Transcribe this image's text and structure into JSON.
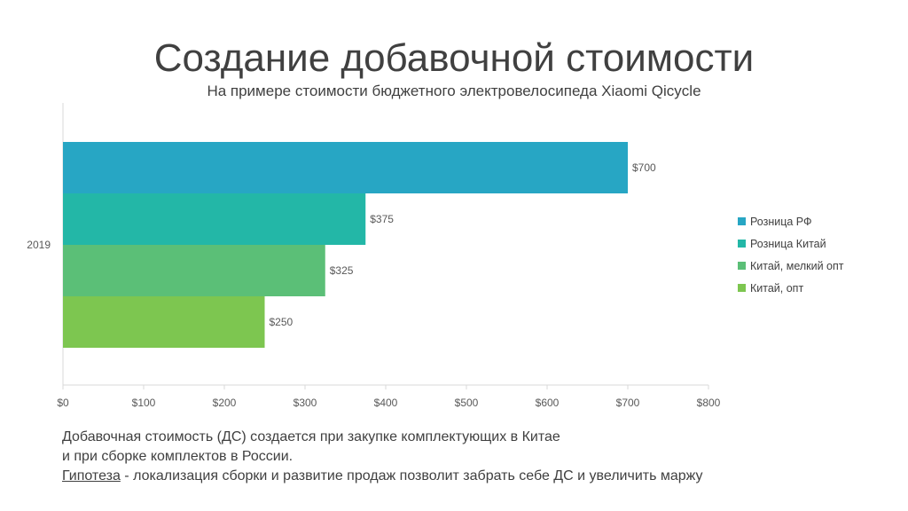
{
  "title": "Создание добавочной стоимости",
  "subtitle": "На примере стоимости бюджетного электровелосипеда Xiaomi Qicycle",
  "colors": {
    "axis": "#d9d9d9",
    "text": "#404040"
  },
  "chart_data": {
    "type": "bar",
    "orientation": "horizontal",
    "categories": [
      "2019"
    ],
    "series": [
      {
        "name": "Розница РФ",
        "values": [
          700
        ],
        "color": "#27A6C4",
        "label": "$700"
      },
      {
        "name": "Розница Китай",
        "values": [
          375
        ],
        "color": "#23B7A7",
        "label": "$375"
      },
      {
        "name": "Китай, мелкий опт",
        "values": [
          325
        ],
        "color": "#5BBF77",
        "label": "$325"
      },
      {
        "name": "Китай, опт",
        "values": [
          250
        ],
        "color": "#7DC650",
        "label": "$250"
      }
    ],
    "xlim": [
      0,
      800
    ],
    "xticks": [
      0,
      100,
      200,
      300,
      400,
      500,
      600,
      700,
      800
    ],
    "xtick_labels": [
      "$0",
      "$100",
      "$200",
      "$300",
      "$400",
      "$500",
      "$600",
      "$700",
      "$800"
    ],
    "grid": false,
    "legend_position": "right"
  },
  "bottom": {
    "line1": "Добавочная стоимость (ДС) создается при закупке комплектующих в Китае",
    "line2": "и при сборке комплектов в России.",
    "hypothesis_word": "Гипотеза",
    "hypothesis_rest": " - локализация сборки и развитие продаж позволит забрать себе ДС и увеличить маржу"
  }
}
